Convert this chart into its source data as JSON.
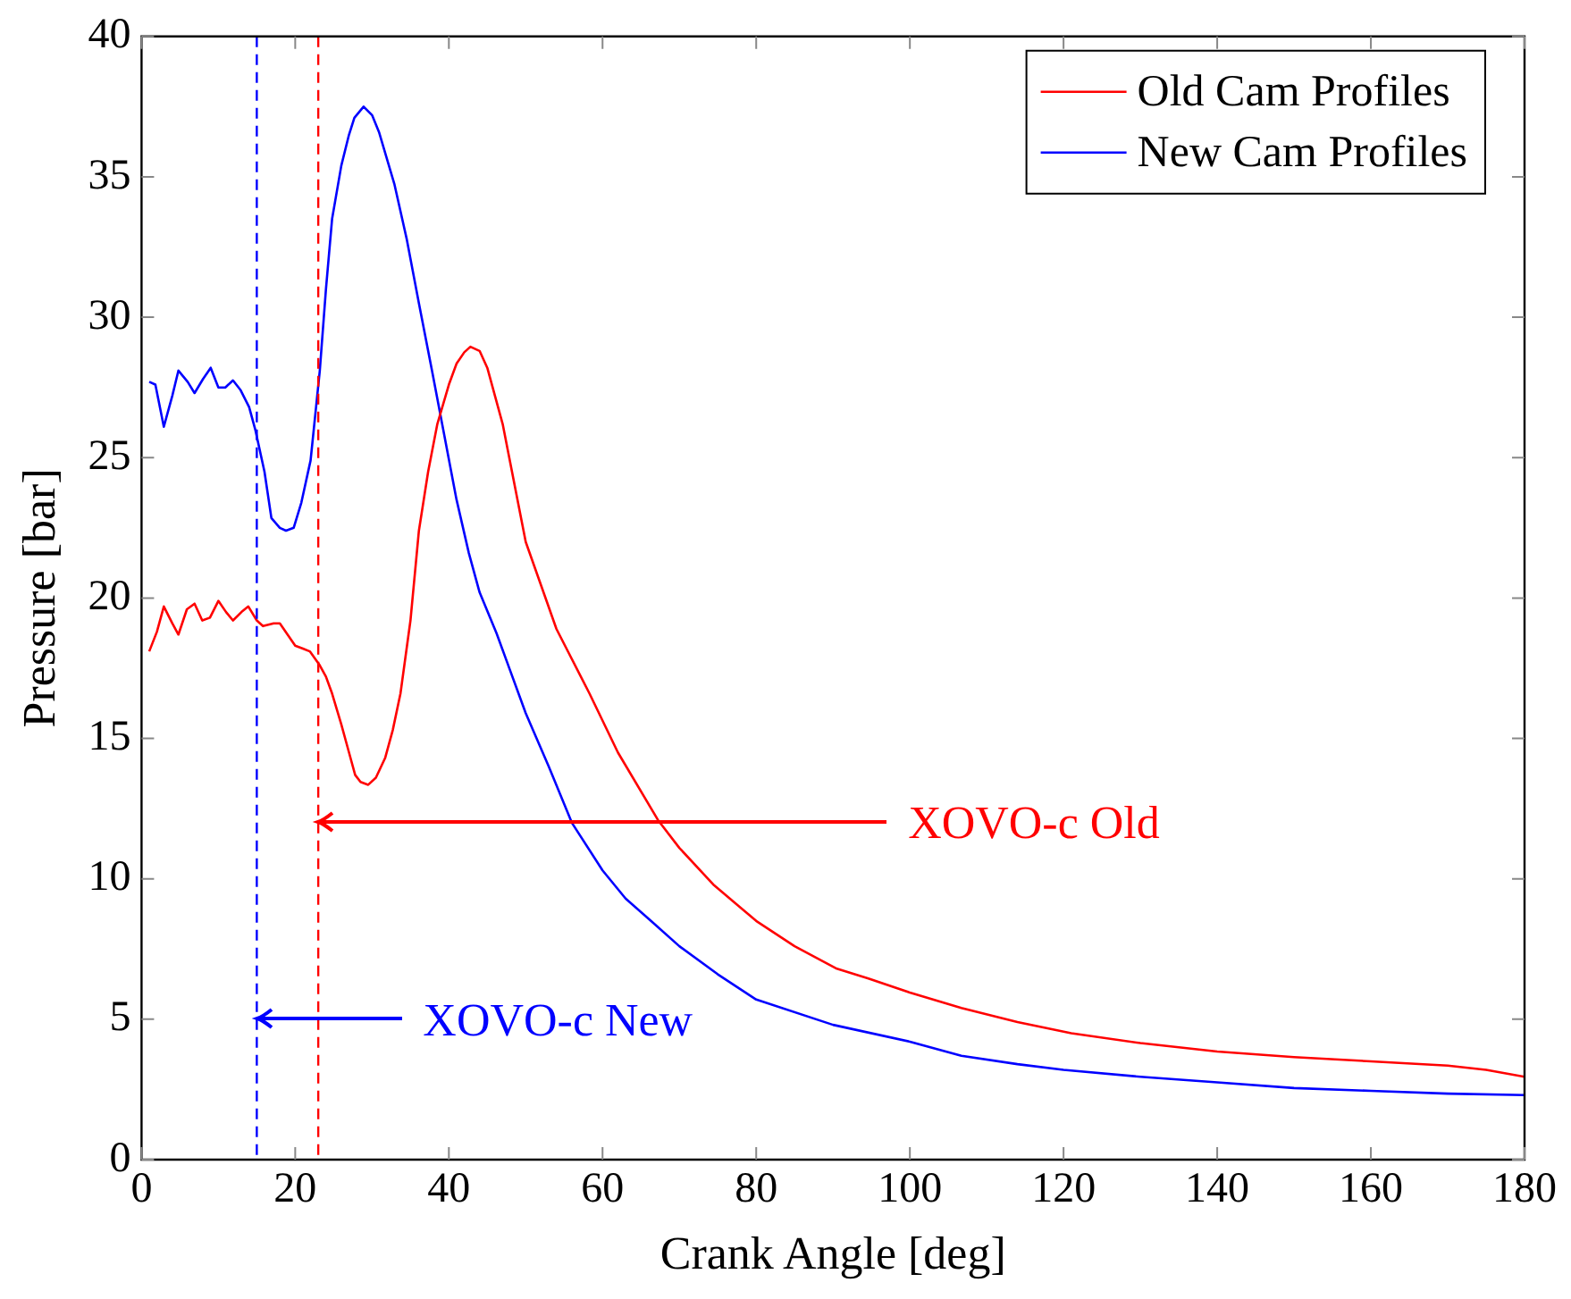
{
  "chart_data": {
    "type": "line",
    "xlabel": "Crank Angle [deg]",
    "ylabel": "Pressure [bar]",
    "xlim": [
      0,
      180
    ],
    "xticks": [
      0,
      20,
      40,
      60,
      80,
      100,
      120,
      140,
      160,
      180
    ],
    "ylim": [
      0,
      40
    ],
    "yticks": [
      0,
      5,
      10,
      15,
      20,
      25,
      30,
      35,
      40
    ],
    "grid": false,
    "legend": "top right",
    "marker": "none",
    "line_style": "solid",
    "series": [
      {
        "name": "Old Cam Profiles",
        "color": "#ff0000",
        "x": [
          1,
          2,
          2.9,
          4,
          4.8,
          5.9,
          6.9,
          7.9,
          8.9,
          10,
          11,
          11.9,
          13,
          13.9,
          15,
          15.8,
          17.2,
          18,
          19,
          20,
          21,
          21.9,
          23.2,
          24,
          24.8,
          26,
          27,
          27.8,
          28.5,
          29.5,
          30.5,
          31.7,
          32.7,
          33.7,
          35,
          36.1,
          37.3,
          38.5,
          40,
          41,
          42,
          42.8,
          44,
          45,
          47,
          50,
          54,
          58.3,
          62,
          67.2,
          70,
          74.4,
          80,
          85,
          90.5,
          94.6,
          100,
          106.7,
          114,
          121,
          130,
          140,
          150,
          160,
          170,
          175,
          180
        ],
        "values": [
          18.1,
          18.8,
          19.7,
          19.1,
          18.7,
          19.6,
          19.8,
          19.2,
          19.3,
          19.9,
          19.5,
          19.2,
          19.5,
          19.7,
          19.2,
          19.0,
          19.1,
          19.1,
          18.7,
          18.3,
          18.2,
          18.1,
          17.6,
          17.2,
          16.6,
          15.5,
          14.5,
          13.7,
          13.45,
          13.35,
          13.6,
          14.3,
          15.3,
          16.6,
          19.2,
          22.4,
          24.5,
          26.2,
          27.6,
          28.35,
          28.75,
          28.95,
          28.8,
          28.2,
          26.2,
          22.0,
          18.9,
          16.6,
          14.5,
          12.1,
          11.1,
          9.8,
          8.5,
          7.6,
          6.8,
          6.45,
          5.95,
          5.4,
          4.9,
          4.5,
          4.15,
          3.85,
          3.65,
          3.5,
          3.35,
          3.2,
          2.95
        ]
      },
      {
        "name": "New Cam Profiles",
        "color": "#0000ff",
        "x": [
          1,
          1.8,
          2.9,
          4,
          4.8,
          6,
          6.9,
          8,
          9,
          10,
          10.9,
          11.9,
          12.9,
          14,
          14.8,
          16,
          16.9,
          18,
          18.8,
          19.8,
          20.8,
          22,
          23.2,
          24,
          24.8,
          26,
          27,
          27.7,
          28.9,
          30,
          30.9,
          32.9,
          34.5,
          36.1,
          37.8,
          39.4,
          41,
          42.6,
          44,
          46.2,
          48,
          50,
          53,
          56,
          60,
          63,
          66.3,
          70,
          75,
          80,
          90,
          100,
          106.7,
          114,
          120,
          130,
          140,
          150,
          160,
          170,
          180
        ],
        "values": [
          27.7,
          27.6,
          26.1,
          27.2,
          28.1,
          27.7,
          27.3,
          27.8,
          28.2,
          27.5,
          27.5,
          27.75,
          27.4,
          26.8,
          26.0,
          24.5,
          22.85,
          22.5,
          22.4,
          22.5,
          23.4,
          24.9,
          28.1,
          31.0,
          33.5,
          35.4,
          36.5,
          37.1,
          37.5,
          37.2,
          36.6,
          34.75,
          32.8,
          30.5,
          28.1,
          25.8,
          23.5,
          21.6,
          20.2,
          18.75,
          17.4,
          15.9,
          14.0,
          12.0,
          10.3,
          9.3,
          8.5,
          7.6,
          6.6,
          5.7,
          4.8,
          4.2,
          3.7,
          3.4,
          3.2,
          2.95,
          2.75,
          2.55,
          2.45,
          2.35,
          2.3
        ]
      }
    ],
    "ref_lines": [
      {
        "axis": "x",
        "value": 23,
        "label": "XOVO-c Old",
        "color": "#ff0000",
        "line_style": "dashed"
      },
      {
        "axis": "x",
        "value": 15,
        "label": "XOVO-c New",
        "color": "#0000ff",
        "line_style": "dashed"
      }
    ]
  }
}
